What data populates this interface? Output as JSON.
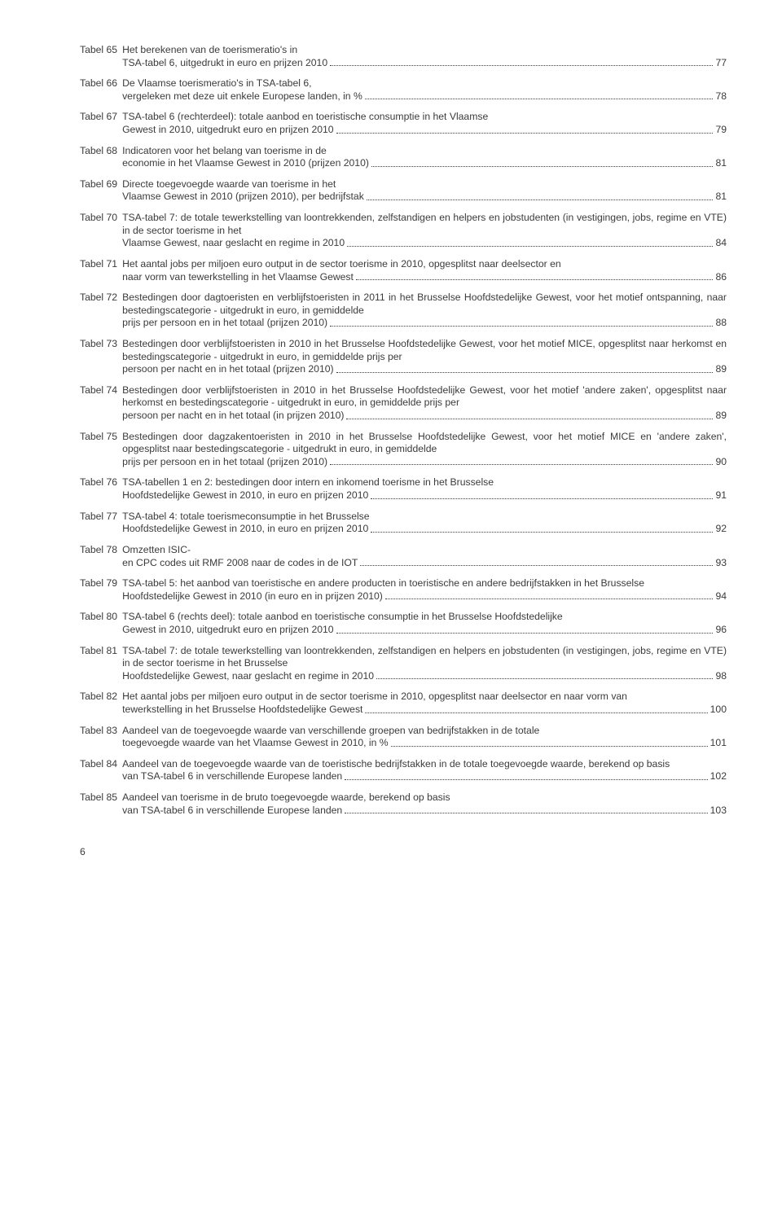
{
  "text_color": "#3b3b3b",
  "font_size_pt": 12.2,
  "line_height": 1.28,
  "page_number": "6",
  "entries": [
    {
      "label": "Tabel 65",
      "desc": "Het berekenen van de toerismeratio's in TSA-tabel 6, uitgedrukt in euro en prijzen 2010",
      "page": "77"
    },
    {
      "label": "Tabel 66",
      "desc": "De Vlaamse toerismeratio's in TSA-tabel 6, vergeleken met deze uit enkele Europese landen, in %",
      "page": "78"
    },
    {
      "label": "Tabel 67",
      "desc": "TSA-tabel 6 (rechterdeel): totale aanbod en toeristische consumptie in het Vlaamse Gewest in 2010, uitgedrukt euro en prijzen 2010",
      "page": "79"
    },
    {
      "label": "Tabel 68",
      "desc": "Indicatoren voor het belang van toerisme in de economie in het Vlaamse Gewest in 2010 (prijzen 2010)",
      "page": "81"
    },
    {
      "label": "Tabel 69",
      "desc": "Directe toegevoegde waarde van toerisme in het Vlaamse Gewest in 2010 (prijzen 2010), per bedrijfstak",
      "page": "81"
    },
    {
      "label": "Tabel 70",
      "desc": "TSA-tabel 7: de totale tewerkstelling van loontrekkenden, zelfstandigen en helpers en jobstudenten (in vestigingen, jobs, regime en VTE) in de sector toerisme in het Vlaamse Gewest, naar geslacht en regime in 2010",
      "page": "84"
    },
    {
      "label": "Tabel 71",
      "desc": "Het aantal jobs per miljoen euro output in de sector toerisme in 2010, opgesplitst naar deelsector en naar vorm van tewerkstelling in het Vlaamse Gewest",
      "page": "86"
    },
    {
      "label": "Tabel 72",
      "desc": "Bestedingen door dagtoeristen en verblijfstoeristen in 2011 in het Brusselse Hoofdstedelijke Gewest, voor het motief ontspanning, naar bestedingscategorie - uitgedrukt in euro, in gemiddelde prijs per persoon en in het totaal (prijzen 2010)",
      "page": "88"
    },
    {
      "label": "Tabel 73",
      "desc": "Bestedingen door verblijfstoeristen in 2010 in het Brusselse Hoofdstedelijke Gewest, voor het motief MICE, opgesplitst naar herkomst en bestedingscategorie - uitgedrukt in euro, in gemiddelde prijs per persoon per nacht en in het totaal (prijzen 2010)",
      "page": "89"
    },
    {
      "label": "Tabel 74",
      "desc": "Bestedingen door verblijfstoeristen in 2010 in het Brusselse Hoofdstedelijke Gewest, voor het motief 'andere zaken', opgesplitst naar herkomst en bestedingscategorie - uitgedrukt in euro, in gemiddelde prijs per persoon per nacht en in het totaal (in prijzen 2010)",
      "page": "89"
    },
    {
      "label": "Tabel 75",
      "desc": "Bestedingen door dagzakentoeristen in 2010 in het Brusselse Hoofdstedelijke Gewest, voor het motief MICE en 'andere zaken', opgesplitst naar bestedings­categorie - uitgedrukt in euro, in gemiddelde prijs per persoon en in het totaal (prijzen 2010)",
      "page": "90"
    },
    {
      "label": "Tabel 76",
      "desc": "TSA-tabellen 1 en 2: bestedingen door intern en inkomend toerisme in het Brusselse Hoofdstedelijke Gewest in 2010, in euro en prijzen 2010",
      "page": "91"
    },
    {
      "label": "Tabel 77",
      "desc": "TSA-tabel 4: totale toerismeconsumptie in het Brusselse Hoofdstedelijke Gewest in 2010, in euro en prijzen 2010",
      "page": "92"
    },
    {
      "label": "Tabel 78",
      "desc": "Omzetten ISIC- en CPC codes uit RMF 2008 naar de codes in de IOT",
      "page": "93"
    },
    {
      "label": "Tabel 79",
      "desc": "TSA-tabel 5: het aanbod van toeristische en andere producten in toeristische en andere bedrijfstakken in het Brusselse Hoofdstedelijke Gewest in 2010 (in euro en in prijzen 2010)",
      "page": "94"
    },
    {
      "label": "Tabel 80",
      "desc": "TSA-tabel 6 (rechts deel): totale aanbod en toeristische consumptie in het Brusselse Hoofdstedelijke Gewest in 2010, uitgedrukt euro en prijzen 2010",
      "page": "96"
    },
    {
      "label": "Tabel 81",
      "desc": "TSA-tabel 7: de totale tewerkstelling van loontrekkenden, zelfstandigen en helpers en jobstudenten (in vestigingen, jobs, regime en VTE) in de sector toerisme in het Brusselse Hoofdstedelijke Gewest, naar geslacht en regime in 2010",
      "page": "98"
    },
    {
      "label": "Tabel 82",
      "desc": "Het aantal jobs per miljoen euro output in de sector toerisme in 2010, opgesplitst naar deelsector en naar vorm van tewerkstelling in het Brusselse Hoofdstedelijke Gewest",
      "page": "100"
    },
    {
      "label": "Tabel 83",
      "desc": "Aandeel van de toegevoegde waarde van verschillende groepen van bedrijfstakken in de totale toegevoegde waarde van het Vlaamse Gewest in 2010, in %",
      "page": "101"
    },
    {
      "label": "Tabel 84",
      "desc": "Aandeel van de toegevoegde waarde van de toeristische bedrijfstakken in de totale toegevoegde waarde, berekend op basis van TSA-tabel 6 in verschillende Europese landen",
      "page": "102"
    },
    {
      "label": "Tabel 85",
      "desc": "Aandeel van toerisme in de bruto toegevoegde waarde, berekend op basis van TSA-tabel 6 in verschillende Europese landen",
      "page": "103"
    }
  ]
}
